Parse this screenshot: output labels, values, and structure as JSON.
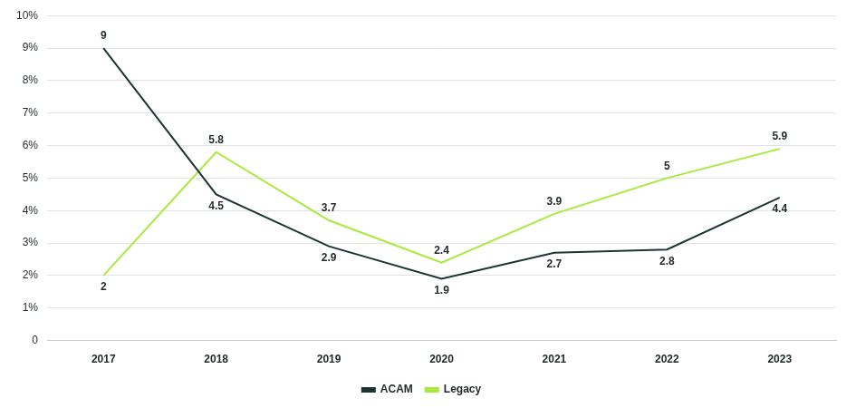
{
  "chart_data": {
    "type": "line",
    "categories": [
      "2017",
      "2018",
      "2019",
      "2020",
      "2021",
      "2022",
      "2023"
    ],
    "series": [
      {
        "name": "ACAM",
        "color": "#1b3532",
        "values": [
          9,
          4.5,
          2.9,
          1.9,
          2.7,
          2.8,
          4.4
        ]
      },
      {
        "name": "Legacy",
        "color": "#a8ea3c",
        "values": [
          2,
          5.8,
          3.7,
          2.4,
          3.9,
          5,
          5.9
        ]
      }
    ],
    "ylim": [
      0,
      10
    ],
    "yticks": [
      0,
      {
        "value": 1,
        "label": "1%"
      },
      {
        "value": 2,
        "label": "2%"
      },
      {
        "value": 3,
        "label": "3%"
      },
      {
        "value": 4,
        "label": "4%"
      },
      {
        "value": 5,
        "label": "5%"
      },
      {
        "value": 6,
        "label": "6%"
      },
      {
        "value": 7,
        "label": "7%"
      },
      {
        "value": 8,
        "label": "8%"
      },
      {
        "value": 9,
        "label": "9%"
      },
      {
        "value": 10,
        "label": "10%"
      }
    ],
    "grid": true,
    "legend": "bottom",
    "data_labels": true
  }
}
